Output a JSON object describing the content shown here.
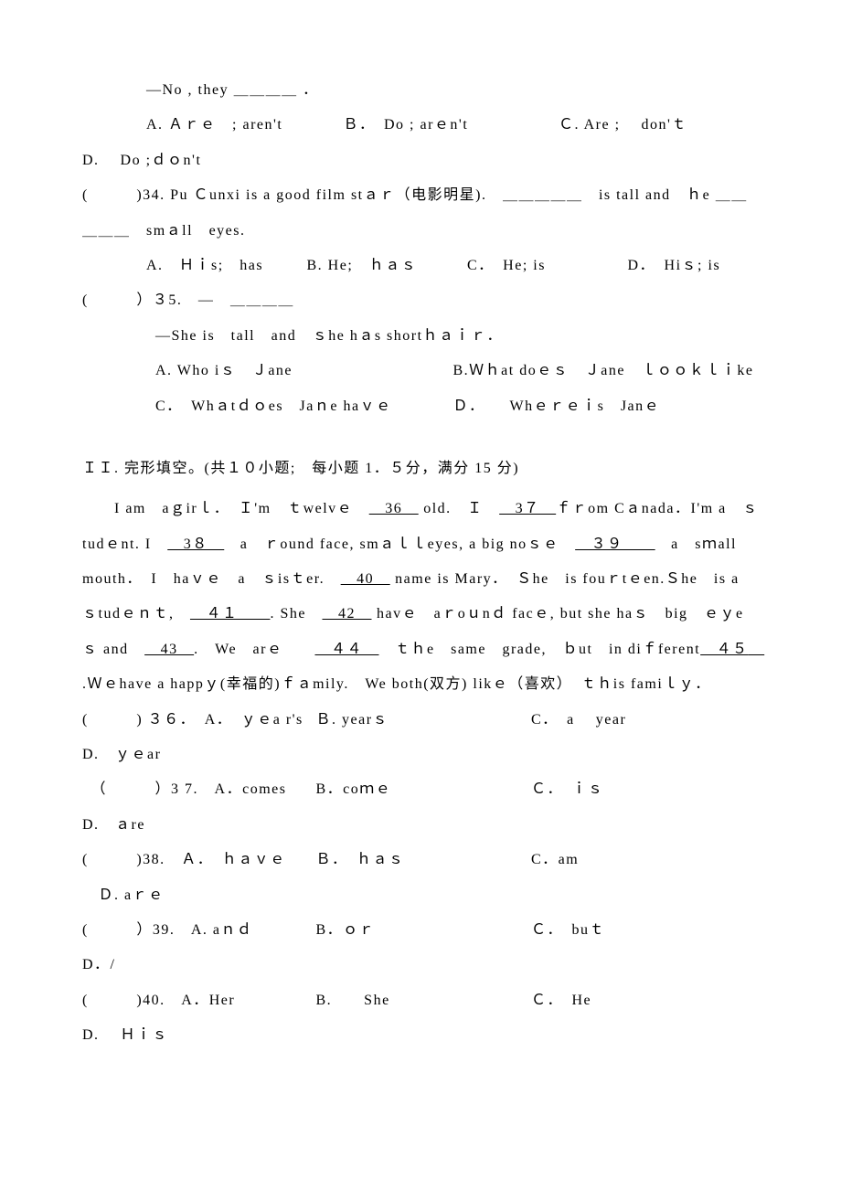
{
  "q33": {
    "line1": "—No , they ＿＿＿＿ ．",
    "optA": "A. Ａｒｅ　; aren't",
    "optB": "Ｂ．　Do ; arｅn't",
    "optC": "Ｃ. Are ;　 don'ｔ",
    "optD": "D.　 Do ;ｄｏn't"
  },
  "q34": {
    "stem": "(　　　)34. Pu Ｃunxi is a good film stａｒ（电影明星).　＿＿＿＿＿　is tall and　ｈe ＿＿＿＿＿　smａll　eyes.",
    "optA": "A.　Ｈｉs;　has",
    "optB": "B. He;　ｈａｓ",
    "optC": "C．　He; is",
    "optD": "D．　Hiｓ; is"
  },
  "q35": {
    "stem": "(　　　）３5.　—　＿＿＿＿",
    "line2": "—She is　tall　and　ｓhe hａs shortｈａｉｒ．",
    "optA": "A. Who iｓ　Ｊane",
    "optB": "B.Ｗｈat doｅｓ　Ｊane　ｌｏｏｋｌｉke",
    "optC": "C．　Whａtｄｏes　Jaｎe haｖｅ",
    "optD": "Ｄ．　　Whｅｒｅｉs　Janｅ"
  },
  "section2": {
    "title": "ＩＩ. 完形填空。(共１０小题;　每小题 1．５分，满分 15 分)",
    "passage": "　　I am　aｇirｌ．　Ｉ'm　ｔwelvｅ　<u>　36　</u> old.　Ｉ　<u>　3７　</u>ｆｒom Cａnada．I'm a　ｓtudｅnt. I　<u>　3８　</u>　a　ｒound face, smａｌｌeyes, a big noｓｅ　<u>　３９　　</u>　a　sｍall mouth．　I　haｖｅ　a　ｓisｔer.　<u>　40　</u> name is Mary．　Ｓhe　is fouｒtｅen.Ｓhe　is a　ｓtudｅｎｔ,　<u>　４１　　</u>. She　<u>　42　</u> havｅ　aｒoｕnｄ facｅ, but she haｓ　big　ｅｙeｓ and　<u>　43　</u>.　We　arｅ　　<u>　４４　</u>　ｔｈe　same　grade,　ｂut　in diｆferent<u>　４５　</u>.Ｗｅhave a happｙ(幸福的)ｆａmily.　We both(双方) likｅ（喜欢）　ｔｈis famiｌｙ．"
  },
  "q36": {
    "stem": "(　　　) ３６．",
    "A": "A．　ｙｅa r's",
    "B": "Ｂ. yearｓ",
    "C": "C．　a　 year",
    "D": "D.　ｙｅar"
  },
  "q37": {
    "stem": "（　　　）3 7.",
    "A": "A．comes",
    "B": "B．coｍｅ",
    "C": "Ｃ．　ｉｓ",
    "D": "D.　ａre"
  },
  "q38": {
    "stem": "(　　　)38.",
    "A": "Ａ．　ｈａｖｅ",
    "B": "Ｂ．　ｈａｓ",
    "C": "C．am",
    "D": "Ｄ. aｒｅ"
  },
  "q39": {
    "stem": "(　　　）39.",
    "A": "A. aｎｄ",
    "B": "B．ｏｒ",
    "C": "Ｃ．　buｔ",
    "D": "D．/"
  },
  "q40": {
    "stem": "(　　　)40.",
    "A": "A．Her",
    "B": "B.　　She",
    "C": "Ｃ．　He",
    "D": "D.　 Ｈｉｓ"
  }
}
